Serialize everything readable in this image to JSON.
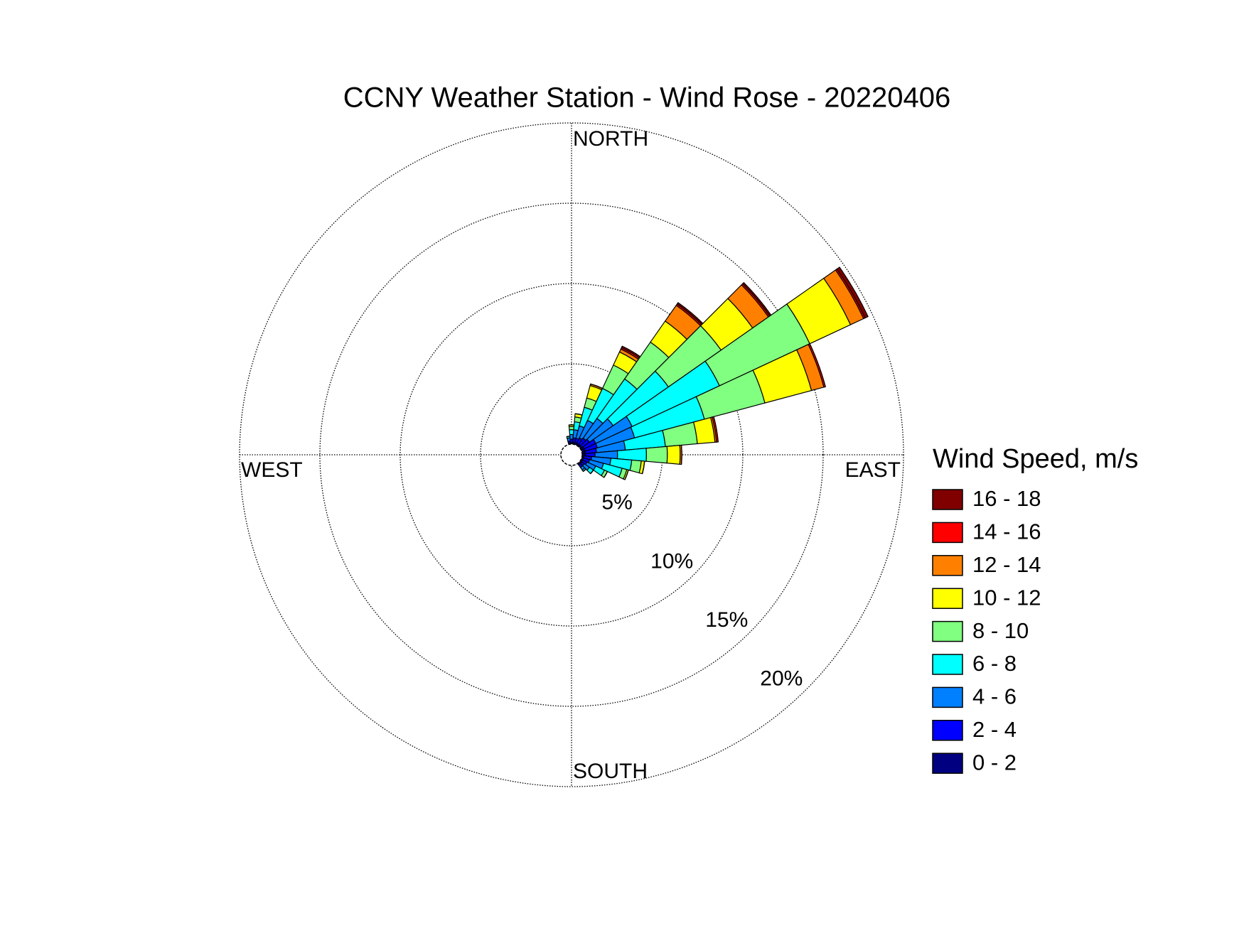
{
  "chart_data": {
    "type": "windrose",
    "title": "CCNY Weather Station - Wind Rose - 20220406",
    "compass": [
      "NORTH",
      "EAST",
      "SOUTH",
      "WEST"
    ],
    "directions": [
      350,
      0,
      10,
      20,
      30,
      40,
      50,
      60,
      70,
      80,
      90,
      100,
      110,
      120,
      130,
      140
    ],
    "rlim": [
      0,
      20
    ],
    "rticks": [
      {
        "value": 5,
        "label": "5%"
      },
      {
        "value": 10,
        "label": "10%"
      },
      {
        "value": 15,
        "label": "15%"
      },
      {
        "value": 20,
        "label": "20%"
      }
    ],
    "grid": true,
    "legend": {
      "title": "Wind Speed, m/s",
      "position": "right"
    },
    "series": [
      {
        "name": "0 - 2",
        "color": "#000080",
        "values": [
          0.1,
          0.1,
          0.1,
          0.1,
          0.1,
          0.1,
          0.1,
          0.2,
          0.2,
          0.2,
          0.2,
          0.1,
          0.1,
          0.1,
          0.1,
          0.1
        ]
      },
      {
        "name": "2 - 4",
        "color": "#0000ff",
        "values": [
          0.1,
          0.2,
          0.3,
          0.3,
          0.4,
          0.5,
          0.6,
          0.8,
          0.8,
          0.7,
          0.6,
          0.5,
          0.4,
          0.3,
          0.2,
          0.2
        ]
      },
      {
        "name": "4 - 6",
        "color": "#0080ff",
        "values": [
          0.2,
          0.3,
          0.5,
          0.8,
          1.2,
          1.5,
          1.8,
          2.5,
          2.4,
          1.8,
          1.4,
          1.2,
          0.9,
          0.6,
          0.4,
          0.2
        ]
      },
      {
        "name": "6 - 8",
        "color": "#00ffff",
        "values": [
          0.1,
          0.3,
          0.5,
          1.2,
          2.2,
          3.0,
          4.2,
          6.0,
          4.5,
          2.5,
          1.8,
          1.3,
          1.2,
          0.6,
          0.3,
          0.1
        ]
      },
      {
        "name": "8 - 10",
        "color": "#80ff80",
        "values": [
          0,
          0.2,
          0.3,
          0.6,
          1.6,
          2.8,
          4.0,
          6.2,
          3.9,
          2.0,
          1.3,
          0.6,
          0.3,
          0.2,
          0,
          0
        ]
      },
      {
        "name": "10 - 12",
        "color": "#ffff00",
        "values": [
          0,
          0.1,
          0.2,
          0.8,
          0.9,
          1.6,
          2.4,
          2.8,
          3.0,
          1.1,
          0.8,
          0.2,
          0.1,
          0,
          0,
          0
        ]
      },
      {
        "name": "12 - 14",
        "color": "#ff8000",
        "values": [
          0,
          0,
          0,
          0.1,
          0.2,
          1.2,
          1.2,
          0.9,
          0.8,
          0.1,
          0.1,
          0,
          0,
          0,
          0,
          0
        ]
      },
      {
        "name": "14 - 16",
        "color": "#ff0000",
        "values": [
          0,
          0,
          0,
          0,
          0.1,
          0.1,
          0.1,
          0.1,
          0.1,
          0.1,
          0,
          0,
          0,
          0,
          0,
          0
        ]
      },
      {
        "name": "16 - 18",
        "color": "#800000",
        "values": [
          0,
          0,
          0,
          0,
          0.1,
          0.1,
          0.1,
          0.2,
          0,
          0,
          0,
          0,
          0,
          0,
          0,
          0
        ]
      }
    ]
  }
}
